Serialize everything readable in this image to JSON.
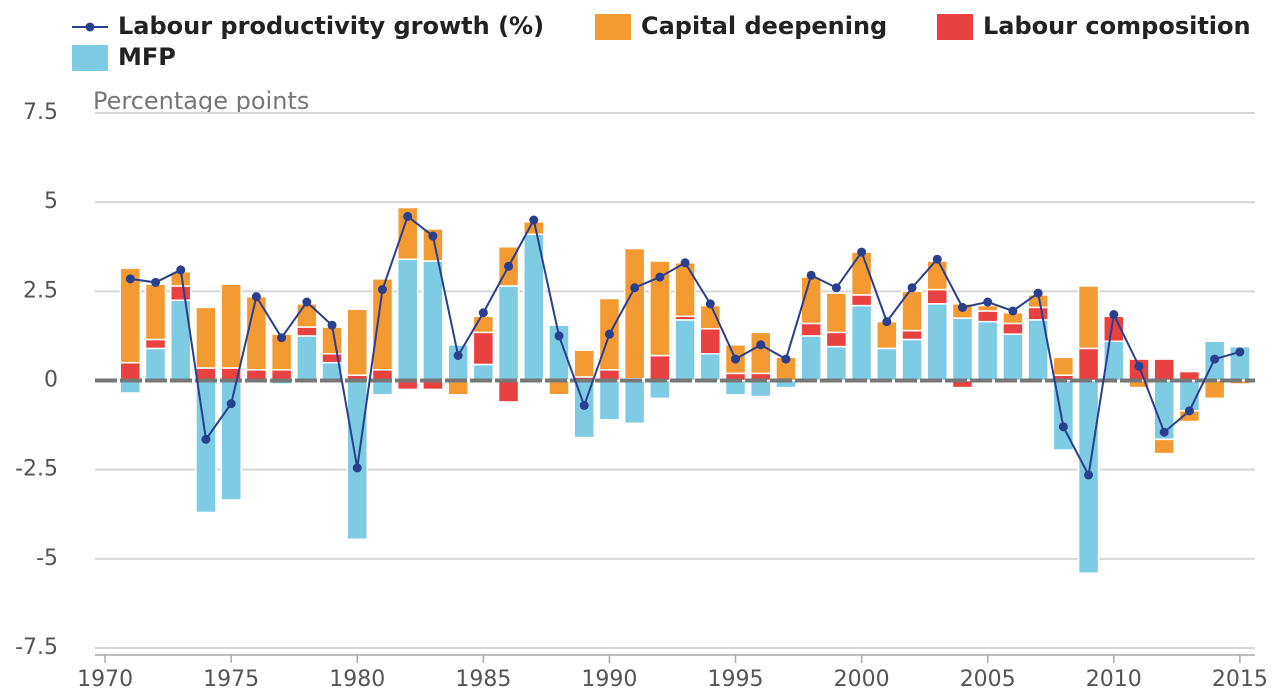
{
  "chart_data": {
    "type": "bar",
    "ylabel": "Percentage points",
    "x": [
      1971,
      1972,
      1973,
      1974,
      1975,
      1976,
      1977,
      1978,
      1979,
      1980,
      1981,
      1982,
      1983,
      1984,
      1985,
      1986,
      1987,
      1988,
      1989,
      1990,
      1991,
      1992,
      1993,
      1994,
      1995,
      1996,
      1997,
      1998,
      1999,
      2000,
      2001,
      2002,
      2003,
      2004,
      2005,
      2006,
      2007,
      2008,
      2009,
      2010,
      2011,
      2012,
      2013,
      2014,
      2015
    ],
    "series": [
      {
        "name": "Labour productivity growth (%)",
        "type": "line",
        "color": "#2b3f8f",
        "values": [
          2.85,
          2.75,
          3.1,
          -1.65,
          -0.65,
          2.35,
          1.2,
          2.2,
          1.55,
          -2.45,
          2.55,
          4.6,
          4.05,
          0.7,
          1.9,
          3.2,
          4.5,
          1.25,
          -0.7,
          1.3,
          2.6,
          2.9,
          3.3,
          2.15,
          0.6,
          1.0,
          0.6,
          2.95,
          2.6,
          3.6,
          1.65,
          2.6,
          3.4,
          2.05,
          2.2,
          1.95,
          2.45,
          -1.3,
          -2.65,
          1.85,
          0.4,
          -1.45,
          -0.85,
          0.6,
          0.8
        ]
      },
      {
        "name": "Capital deepening",
        "type": "bar",
        "color": "#f39a32",
        "values": [
          2.65,
          1.55,
          0.4,
          1.7,
          2.35,
          2.05,
          1.0,
          0.65,
          0.75,
          1.85,
          2.55,
          1.45,
          0.9,
          -0.4,
          0.45,
          1.1,
          0.35,
          -0.4,
          0.75,
          2.0,
          3.65,
          2.65,
          1.5,
          0.65,
          0.8,
          1.15,
          0.65,
          1.3,
          1.1,
          1.2,
          0.75,
          1.1,
          0.8,
          0.4,
          0.15,
          0.3,
          0.35,
          0.5,
          1.75,
          0,
          -0.2,
          -0.4,
          -0.3,
          -0.5,
          -0.1
        ]
      },
      {
        "name": "Labour composition",
        "type": "bar",
        "color": "#e8413f",
        "values": [
          0.5,
          0.25,
          0.4,
          0.35,
          0.35,
          0.3,
          0.3,
          0.25,
          0.25,
          0.15,
          0.3,
          -0.25,
          -0.25,
          0,
          0.9,
          -0.6,
          0,
          0,
          0.1,
          0.3,
          0.05,
          0.7,
          0.1,
          0.7,
          0.2,
          0.2,
          0,
          0.35,
          0.4,
          0.3,
          0,
          0.25,
          0.4,
          -0.2,
          0.3,
          0.3,
          0.35,
          0.15,
          0.9,
          0.7,
          0.6,
          0.6,
          0.25,
          0,
          0
        ]
      },
      {
        "name": "MFP",
        "type": "bar",
        "color": "#7ecbe4",
        "values": [
          -0.35,
          0.9,
          2.25,
          -3.7,
          -3.35,
          0,
          -0.1,
          1.25,
          0.5,
          -4.45,
          -0.4,
          3.4,
          3.35,
          1.0,
          0.45,
          2.65,
          4.1,
          1.55,
          -1.6,
          -1.1,
          -1.2,
          -0.5,
          1.7,
          0.75,
          -0.4,
          -0.45,
          -0.2,
          1.25,
          0.95,
          2.1,
          0.9,
          1.15,
          2.15,
          1.75,
          1.65,
          1.3,
          1.7,
          -1.95,
          -5.4,
          1.1,
          0,
          -1.65,
          -0.85,
          1.1,
          0.95
        ]
      }
    ],
    "xlim": [
      1969.6,
      2015.6
    ],
    "xticks": [
      1970,
      1975,
      1980,
      1985,
      1990,
      1995,
      2000,
      2005,
      2010,
      2015
    ],
    "ylim": [
      -7.5,
      7.5
    ],
    "yticks": [
      -7.5,
      -5,
      -2.5,
      0,
      2.5,
      5,
      7.5
    ],
    "grid": true
  }
}
